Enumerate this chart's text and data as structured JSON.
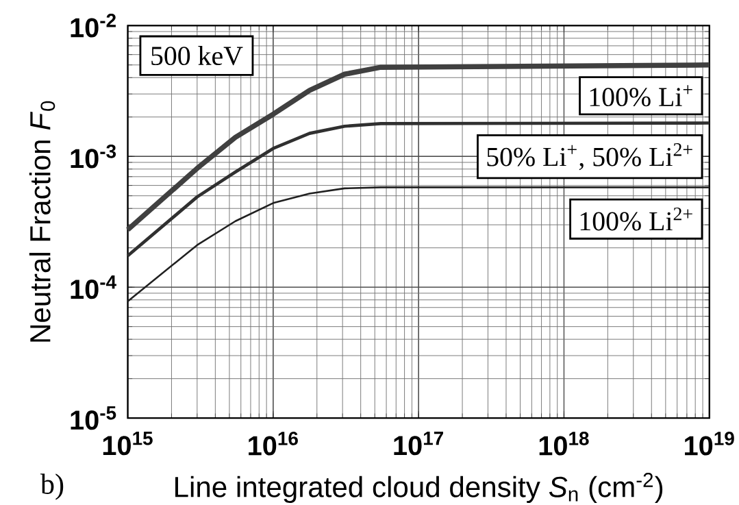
{
  "chart_data": {
    "type": "line",
    "xlabel": "Line integrated cloud density *S*$_{n}$ (cm$^{-2}$)",
    "ylabel": "Neutral Fraction *F*$_{0}$",
    "x": [
      1000000000000000.0,
      3000000000000000.0,
      5500000000000000.0,
      1e+16,
      1.78e+16,
      3.1e+16,
      5.5e+16,
      1e+19
    ],
    "series": [
      {
        "name": "100% Li$^{+}$",
        "color": "#404040",
        "values": [
          0.000275,
          0.00081,
          0.0014,
          0.0021,
          0.0032,
          0.00425,
          0.0048,
          0.005
        ]
      },
      {
        "name": "50% Li$^{+}$, 50% Li$^{2+}$",
        "color": "#303030",
        "values": [
          0.000174,
          0.00049,
          0.00076,
          0.00115,
          0.0015,
          0.0017,
          0.00178,
          0.0018
        ]
      },
      {
        "name": "100% Li$^{2+}$",
        "color": "#202020",
        "values": [
          7.8e-05,
          0.00021,
          0.00032,
          0.00044,
          0.00052,
          0.00057,
          0.00058,
          0.00058
        ]
      }
    ],
    "xlim": [
      1000000000000000.0,
      1e+19
    ],
    "ylim": [
      1e-05,
      0.01
    ],
    "xticks": [
      {
        "value": 1000000000000000.0,
        "label": "10$^{15}$"
      },
      {
        "value": 1e+16,
        "label": "10$^{16}$"
      },
      {
        "value": 1e+17,
        "label": "10$^{17}$"
      },
      {
        "value": 1e+18,
        "label": "10$^{18}$"
      },
      {
        "value": 1e+19,
        "label": "10$^{19}$"
      }
    ],
    "yticks": [
      {
        "value": 1e-05,
        "label": "10$^{-5}$"
      },
      {
        "value": 0.0001,
        "label": "10$^{-4}$"
      },
      {
        "value": 0.001,
        "label": "10$^{-3}$"
      },
      {
        "value": 0.01,
        "label": "10$^{-2}$"
      }
    ],
    "log": "xy",
    "grid": true,
    "marker": "none",
    "line_style": "solid",
    "annotations": [
      "500 keV",
      "b)"
    ]
  }
}
